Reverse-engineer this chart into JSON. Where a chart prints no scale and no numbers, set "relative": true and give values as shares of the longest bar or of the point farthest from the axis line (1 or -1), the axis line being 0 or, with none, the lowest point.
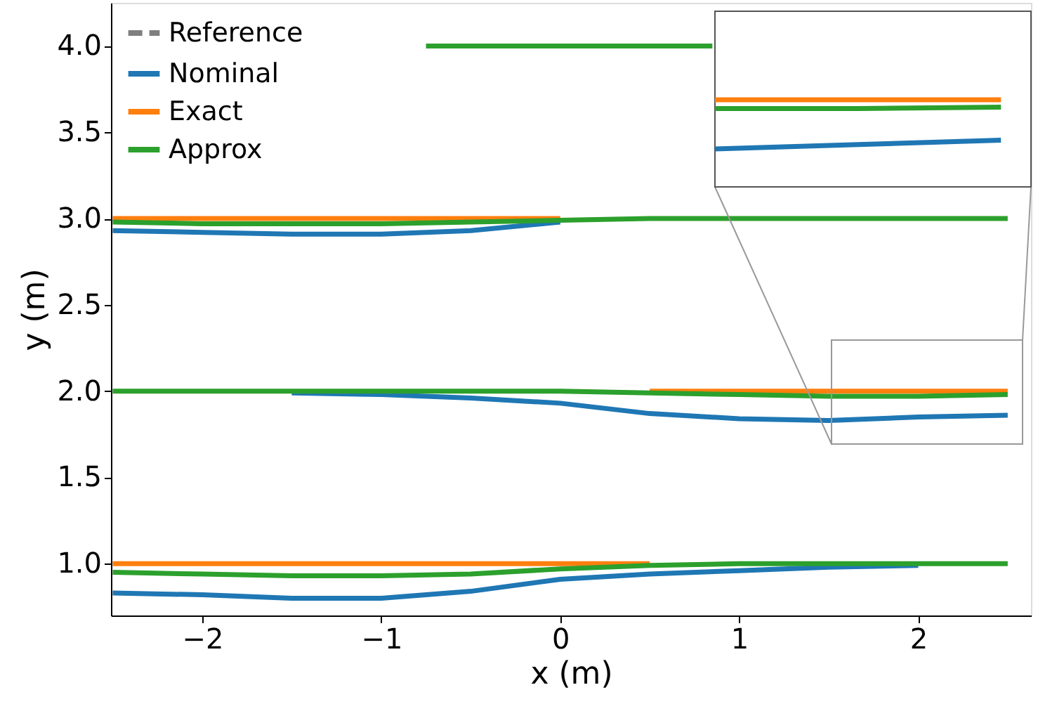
{
  "chart_data": [
    {
      "type": "line",
      "xlabel": "x (m)",
      "ylabel": "y (m)",
      "xlim": [
        -2.51,
        2.63
      ],
      "ylim": [
        0.7,
        4.25
      ],
      "xticks": [
        {
          "value": -2,
          "label": "−2"
        },
        {
          "value": -1,
          "label": "−1"
        },
        0,
        1,
        2
      ],
      "yticks": [
        {
          "value": 1,
          "label": "1.0"
        },
        1.5,
        {
          "value": 2,
          "label": "2.0"
        },
        2.5,
        {
          "value": 3,
          "label": "3.0"
        },
        3.5,
        {
          "value": 4,
          "label": "4.0"
        }
      ],
      "grid": false,
      "legend": "top left",
      "marker": "none",
      "x": [
        -2.5,
        -2,
        -1.5,
        -1,
        -0.5,
        0,
        0.5,
        1,
        1.5,
        2,
        2.5
      ],
      "series": [
        {
          "name": "Reference",
          "color": "#7f7f7f",
          "line_style": "dashed",
          "values": [
            null,
            null,
            null,
            null,
            null,
            null,
            null,
            null,
            null,
            null,
            null
          ]
        },
        {
          "name": "Nominal",
          "color": "#1f77b4",
          "line_style": "solid",
          "values": [
            0.83,
            0.82,
            0.8,
            0.8,
            0.84,
            0.91,
            0.94,
            0.96,
            0.98,
            0.99,
            null
          ]
        },
        {
          "color": "#1f77b4",
          "line_style": "solid",
          "values": [
            null,
            null,
            1.99,
            1.98,
            1.96,
            1.93,
            1.87,
            1.84,
            1.83,
            1.85,
            1.86
          ]
        },
        {
          "color": "#1f77b4",
          "line_style": "solid",
          "values": [
            2.93,
            2.92,
            2.91,
            2.91,
            2.93,
            2.98,
            null,
            null,
            null,
            null,
            null
          ]
        },
        {
          "name": "Exact",
          "color": "#ff7f0e",
          "line_style": "solid",
          "values": [
            1.0,
            1.0,
            1.0,
            1.0,
            1.0,
            1.0,
            1.0,
            null,
            null,
            null,
            null
          ]
        },
        {
          "color": "#ff7f0e",
          "line_style": "solid",
          "values": [
            null,
            null,
            null,
            null,
            null,
            null,
            2.0,
            2.0,
            2.0,
            2.0,
            2.0
          ]
        },
        {
          "color": "#ff7f0e",
          "line_style": "solid",
          "values": [
            3.0,
            3.0,
            3.0,
            3.0,
            3.0,
            3.0,
            null,
            null,
            null,
            null,
            null
          ]
        },
        {
          "name": "Approx",
          "color": "#2ca02c",
          "line_style": "solid",
          "values": [
            0.95,
            0.94,
            0.93,
            0.93,
            0.94,
            0.97,
            0.99,
            1.0,
            1.0,
            1.0,
            1.0
          ]
        },
        {
          "color": "#2ca02c",
          "line_style": "solid",
          "values": [
            2.0,
            2.0,
            2.0,
            2.0,
            2.0,
            2.0,
            1.99,
            1.98,
            1.97,
            1.97,
            1.98
          ]
        },
        {
          "color": "#2ca02c",
          "line_style": "solid",
          "values": [
            2.98,
            2.97,
            2.97,
            2.97,
            2.98,
            2.99,
            3.0,
            3.0,
            3.0,
            3.0,
            3.0
          ]
        },
        {
          "color": "#2ca02c",
          "line_style": "solid",
          "x": [
            -0.75,
            0.85
          ],
          "values": [
            4.0,
            4.0
          ]
        }
      ]
    },
    {
      "type": "line",
      "relative": true,
      "tick_labels": false,
      "categories": [
        null,
        null,
        null
      ],
      "series": [
        {
          "color": "#1f77b4",
          "line_style": "solid",
          "values": [
            0,
            0.09,
            0.18
          ]
        },
        {
          "color": "#ff7f0e",
          "line_style": "solid",
          "values": [
            1,
            1,
            1
          ]
        },
        {
          "color": "#2ca02c",
          "line_style": "solid",
          "values": [
            0.82,
            0.82,
            0.85
          ]
        }
      ]
    }
  ]
}
